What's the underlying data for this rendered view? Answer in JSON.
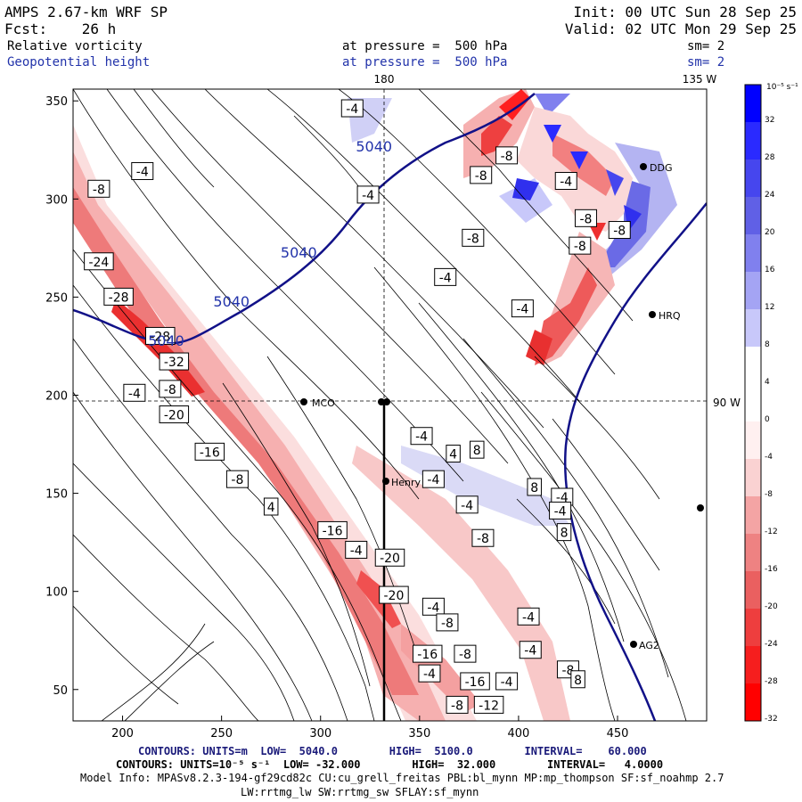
{
  "header": {
    "model_title": "AMPS 2.67-km WRF SP",
    "init_time": "Init: 00 UTC Sun 28 Sep 25",
    "forecast_hour": "Fcst:    26 h",
    "valid_time": "Valid: 02 UTC Mon 29 Sep 25",
    "field1_name": "Relative vorticity",
    "field1_pressure": "at pressure =  500 hPa",
    "field1_smoothing": "sm= 2",
    "field2_name": "Geopotential height",
    "field2_pressure": "at pressure =  500 hPa",
    "field2_smoothing": "sm= 2"
  },
  "map": {
    "lon_label_180": "180",
    "lon_label_135w": "135 W",
    "lat_label_90s": "90 W",
    "stations": [
      "MCO",
      "Henry",
      "HRQ",
      "DDG",
      "AG2"
    ]
  },
  "footer": {
    "contours1": "CONTOURS: UNITS=m  LOW=  5040.0        HIGH=  5100.0        INTERVAL=    60.000",
    "contours2": "CONTOURS: UNITS=10⁻⁵ s⁻¹  LOW= -32.000        HIGH=  32.000        INTERVAL=   4.0000",
    "model_info": "Model Info: MPASv8.2.3-194-gf29cd82c CU:cu_grell_freitas PBL:bl_mynn MP:mp_thompson SF:sf_noahmp 2.7",
    "model_info2": "LW:rrtmg_lw SW:rrtmg_sw SFLAY:sf_mynn"
  },
  "colorbar": {
    "unit_label": "10⁻⁵ s⁻¹",
    "levels": [
      32,
      28,
      24,
      20,
      16,
      12,
      8,
      4,
      0,
      -4,
      -8,
      -12,
      -16,
      -20,
      -24,
      -28,
      -32
    ],
    "colors": [
      "#0000ff",
      "#2a2aff",
      "#4646ee",
      "#6060e6",
      "#8080ee",
      "#a4a4f4",
      "#c8c8fa",
      "#ffffff",
      "#ffffff",
      "#fff0f0",
      "#fad2d2",
      "#f4a4a4",
      "#ee8282",
      "#ea6060",
      "#ee3e3e",
      "#f61e1e",
      "#ff0000"
    ]
  },
  "chart_data": {
    "type": "heatmap",
    "title": "Relative vorticity / Geopotential height at pressure = 500 hPa",
    "xlabel": "",
    "ylabel": "",
    "x_ticks": [
      200,
      250,
      300,
      350,
      400,
      450
    ],
    "y_ticks": [
      50,
      100,
      150,
      200,
      250,
      300,
      350
    ],
    "xlim": [
      175,
      495
    ],
    "ylim": [
      34,
      356
    ],
    "vorticity_contour_interval": 4,
    "vorticity_range": [
      -32,
      32
    ],
    "height_contour_levels": [
      5040
    ],
    "height_contour_labels": [
      {
        "x": 222,
        "y": 228,
        "value": "5040"
      },
      {
        "x": 255,
        "y": 248,
        "value": "5040"
      },
      {
        "x": 289,
        "y": 273,
        "value": "5040"
      },
      {
        "x": 327,
        "y": 327,
        "value": "5040"
      }
    ],
    "vorticity_labels": [
      {
        "x": 188,
        "y": 305,
        "value": "-8"
      },
      {
        "x": 188,
        "y": 268,
        "value": "-24"
      },
      {
        "x": 198,
        "y": 250,
        "value": "-28"
      },
      {
        "x": 219,
        "y": 230,
        "value": "-28"
      },
      {
        "x": 226,
        "y": 217,
        "value": "-32"
      },
      {
        "x": 206,
        "y": 201,
        "value": "-4"
      },
      {
        "x": 224,
        "y": 203,
        "value": "-8"
      },
      {
        "x": 226,
        "y": 190,
        "value": "-20"
      },
      {
        "x": 244,
        "y": 171,
        "value": "-16"
      },
      {
        "x": 258,
        "y": 157,
        "value": "-8"
      },
      {
        "x": 275,
        "y": 143,
        "value": "4"
      },
      {
        "x": 306,
        "y": 131,
        "value": "-16"
      },
      {
        "x": 318,
        "y": 121,
        "value": "-4"
      },
      {
        "x": 335,
        "y": 117,
        "value": "-20"
      },
      {
        "x": 337,
        "y": 98,
        "value": "-20"
      },
      {
        "x": 357,
        "y": 92,
        "value": "-4"
      },
      {
        "x": 364,
        "y": 84,
        "value": "-8"
      },
      {
        "x": 354,
        "y": 68,
        "value": "-16"
      },
      {
        "x": 373,
        "y": 68,
        "value": "-8"
      },
      {
        "x": 378,
        "y": 54,
        "value": "-16"
      },
      {
        "x": 394,
        "y": 54,
        "value": "-4"
      },
      {
        "x": 385,
        "y": 42,
        "value": "-12"
      },
      {
        "x": 369,
        "y": 42,
        "value": "-8"
      },
      {
        "x": 355,
        "y": 58,
        "value": "-4"
      },
      {
        "x": 351,
        "y": 179,
        "value": "-4"
      },
      {
        "x": 367,
        "y": 170,
        "value": "4"
      },
      {
        "x": 379,
        "y": 172,
        "value": "8"
      },
      {
        "x": 357,
        "y": 157,
        "value": "-4"
      },
      {
        "x": 374,
        "y": 144,
        "value": "-4"
      },
      {
        "x": 382,
        "y": 127,
        "value": "-8"
      },
      {
        "x": 405,
        "y": 87,
        "value": "-4"
      },
      {
        "x": 406,
        "y": 70,
        "value": "-4"
      },
      {
        "x": 425,
        "y": 60,
        "value": "-8"
      },
      {
        "x": 430,
        "y": 55,
        "value": "8"
      },
      {
        "x": 422,
        "y": 148,
        "value": "-4"
      },
      {
        "x": 421,
        "y": 141,
        "value": "-4"
      },
      {
        "x": 423,
        "y": 130,
        "value": "8"
      },
      {
        "x": 408,
        "y": 153,
        "value": "8"
      },
      {
        "x": 316,
        "y": 346,
        "value": "-4"
      },
      {
        "x": 210,
        "y": 314,
        "value": "-4"
      },
      {
        "x": 324,
        "y": 302,
        "value": "-4"
      },
      {
        "x": 394,
        "y": 322,
        "value": "-8"
      },
      {
        "x": 381,
        "y": 312,
        "value": "-8"
      },
      {
        "x": 424,
        "y": 309,
        "value": "-4"
      },
      {
        "x": 377,
        "y": 280,
        "value": "-8"
      },
      {
        "x": 434,
        "y": 290,
        "value": "-8"
      },
      {
        "x": 431,
        "y": 276,
        "value": "-8"
      },
      {
        "x": 363,
        "y": 260,
        "value": "-4"
      },
      {
        "x": 402,
        "y": 244,
        "value": "-4"
      },
      {
        "x": 451,
        "y": 284,
        "value": "-8"
      }
    ],
    "lon_lines": [
      {
        "label": "180",
        "x": 335
      },
      {
        "label": "135 W",
        "x": 495
      }
    ],
    "lat_lines": [
      {
        "label": "90 W",
        "y": 195
      }
    ]
  }
}
